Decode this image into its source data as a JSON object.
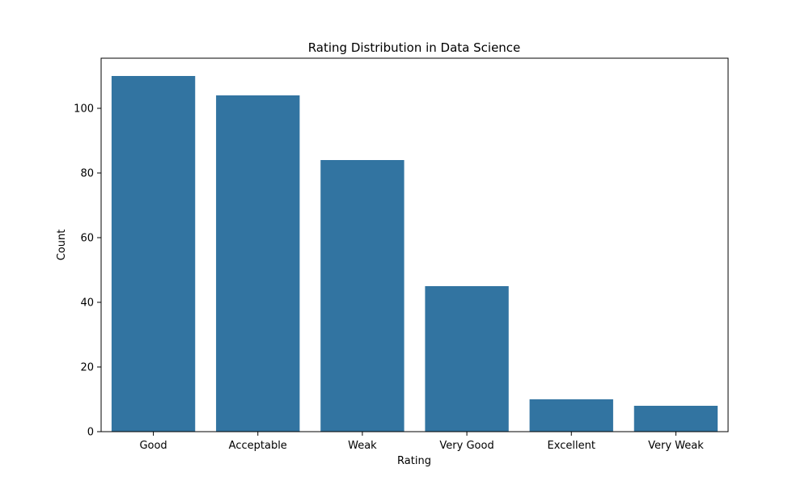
{
  "chart_data": {
    "type": "bar",
    "title": "Rating Distribution in Data Science",
    "xlabel": "Rating",
    "ylabel": "Count",
    "categories": [
      "Good",
      "Acceptable",
      "Weak",
      "Very Good",
      "Excellent",
      "Very Weak"
    ],
    "values": [
      110,
      104,
      84,
      45,
      10,
      8
    ],
    "ylim": [
      0,
      115.5
    ],
    "yticks": [
      0,
      20,
      40,
      60,
      80,
      100
    ],
    "grid": false,
    "legend": "none",
    "bar_color": "#3274a1"
  }
}
